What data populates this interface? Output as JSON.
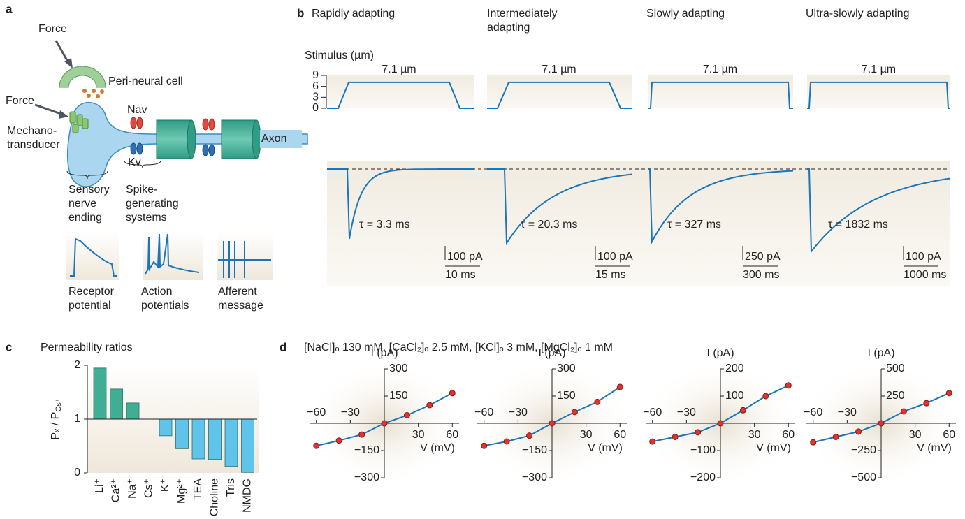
{
  "panel_labels": {
    "a": "a",
    "b": "b",
    "c": "c",
    "d": "d"
  },
  "panel_a": {
    "force_top": "Force",
    "peri_neural_cell": "Peri-neural cell",
    "force_side": "Force",
    "mechanotransducer": "Mechano-transducer",
    "nav": "Nav",
    "kv": "Kv",
    "axon": "Axon",
    "sensory_nerve_ending": "Sensory nerve ending",
    "spike_generating_systems": "Spike-generating systems",
    "receptor_potential": "Receptor potential",
    "action_potentials": "Action potentials",
    "afferent_message": "Afferent message"
  },
  "panel_b": {
    "columns": [
      "Rapidly adapting",
      "Intermediately adapting",
      "Slowly adapting",
      "Ultra-slowly adapting"
    ]
  },
  "panel_d": {
    "title": "[NaCl]ₒ 130 mM, [CaCl₂]ₒ 2.5 mM, [KCl]ₒ 3 mM, [MgCl₂]ₒ 1 mM"
  },
  "chart_data": [
    {
      "type": "stimulus",
      "ylabel": "Stimulus (µm)",
      "ylim": [
        0,
        9
      ],
      "yticks": [
        0,
        3,
        6,
        9
      ],
      "color": "#1a75bb",
      "values": [
        7.1,
        7.1,
        7.1,
        7.1
      ],
      "value_labels": [
        "7.1 µm",
        "7.1 µm",
        "7.1 µm",
        "7.1 µm"
      ]
    },
    {
      "type": "current",
      "color": "#1a75bb",
      "series": [
        {
          "peak": -500,
          "tau": 3.3,
          "tau_label": "τ = 3.3 ms",
          "scale_current": 100,
          "scale_current_label": "100 pA",
          "scale_time": 10,
          "scale_time_label": "10 ms"
        },
        {
          "peak": -530,
          "tau": 20.3,
          "tau_label": "τ = 20.3 ms",
          "scale_current": 100,
          "scale_current_label": "100 pA",
          "scale_time": 15,
          "scale_time_label": "15 ms"
        },
        {
          "peak": -1300,
          "tau": 327,
          "tau_label": "τ = 327 ms",
          "scale_current": 250,
          "scale_current_label": "250 pA",
          "scale_time": 300,
          "scale_time_label": "300 ms"
        },
        {
          "peak": -590,
          "tau": 1832,
          "tau_label": "τ = 1832 ms",
          "scale_current": 100,
          "scale_current_label": "100 pA",
          "scale_time": 1000,
          "scale_time_label": "1000 ms"
        }
      ]
    },
    {
      "type": "bar",
      "title": "Permeability ratios",
      "ylabel": "Pₓ / P",
      "ylabel_sub": "Cs⁺",
      "categories": [
        "Li⁺",
        "Ca²⁺",
        "Na⁺",
        "Cs⁺",
        "K⁺",
        "Mg²⁺",
        "TEA",
        "Choline",
        "Tris",
        "NMDG"
      ],
      "values": [
        1.95,
        1.56,
        1.3,
        1.0,
        0.69,
        0.45,
        0.26,
        0.25,
        0.12,
        0.01
      ],
      "ylim": [
        0,
        2
      ],
      "yticks": [
        0,
        1,
        2
      ],
      "baseline": 1,
      "color_above": "#3fae94",
      "color_below": "#5fc3ea"
    },
    {
      "type": "iv",
      "x": [
        -60,
        -40,
        -20,
        0,
        20,
        40,
        60
      ],
      "series": [
        {
          "values": [
            -124,
            -95,
            -62,
            0,
            44,
            100,
            166
          ],
          "color": "#e2322b"
        }
      ],
      "line_color": "#1a75bb",
      "xlim": [
        -66,
        66
      ],
      "ylim": [
        -300,
        300
      ],
      "xticks": [
        {
          "value": -60,
          "label": "−60"
        },
        {
          "value": -30,
          "label": "−30"
        },
        30,
        60
      ],
      "yticks": [
        {
          "value": -300,
          "label": "−300"
        },
        {
          "value": -150,
          "label": "−150"
        },
        150,
        300
      ],
      "xlabel": "V (mV)",
      "ylabel": "I (pA)"
    },
    {
      "type": "iv",
      "x": [
        -60,
        -40,
        -20,
        0,
        20,
        40,
        60
      ],
      "series": [
        {
          "values": [
            -124,
            -100,
            -68,
            0,
            62,
            118,
            200
          ],
          "color": "#e2322b"
        }
      ],
      "line_color": "#1a75bb",
      "xlim": [
        -66,
        66
      ],
      "ylim": [
        -300,
        300
      ],
      "xticks": [
        {
          "value": -60,
          "label": "−60"
        },
        {
          "value": -30,
          "label": "−30"
        },
        30,
        60
      ],
      "yticks": [
        {
          "value": -300,
          "label": "−300"
        },
        {
          "value": -150,
          "label": "−150"
        },
        150,
        300
      ],
      "xlabel": "V (mV)",
      "ylabel": "I (pA)"
    },
    {
      "type": "iv",
      "x": [
        -60,
        -40,
        -20,
        0,
        20,
        40,
        60
      ],
      "series": [
        {
          "values": [
            -67,
            -50,
            -33,
            0,
            48,
            100,
            139
          ],
          "color": "#e2322b"
        }
      ],
      "line_color": "#1a75bb",
      "xlim": [
        -66,
        66
      ],
      "ylim": [
        -200,
        200
      ],
      "xticks": [
        {
          "value": -60,
          "label": "−60"
        },
        {
          "value": -30,
          "label": "−30"
        },
        30,
        60
      ],
      "yticks": [
        {
          "value": -200,
          "label": "−200"
        },
        {
          "value": -100,
          "label": "−100"
        },
        100,
        200
      ],
      "xlabel": "V (mV)",
      "ylabel": "I (pA)"
    },
    {
      "type": "iv",
      "x": [
        -60,
        -40,
        -20,
        0,
        20,
        40,
        60
      ],
      "series": [
        {
          "values": [
            -174,
            -125,
            -76,
            0,
            109,
            185,
            277
          ],
          "color": "#e2322b"
        }
      ],
      "line_color": "#1a75bb",
      "xlim": [
        -66,
        66
      ],
      "ylim": [
        -500,
        500
      ],
      "xticks": [
        {
          "value": -60,
          "label": "−60"
        },
        {
          "value": -30,
          "label": "−30"
        },
        30,
        60
      ],
      "yticks": [
        {
          "value": -500,
          "label": "−500"
        },
        {
          "value": -250,
          "label": "−250"
        },
        250,
        500
      ],
      "xlabel": "V (mV)",
      "ylabel": "I (pA)"
    }
  ]
}
